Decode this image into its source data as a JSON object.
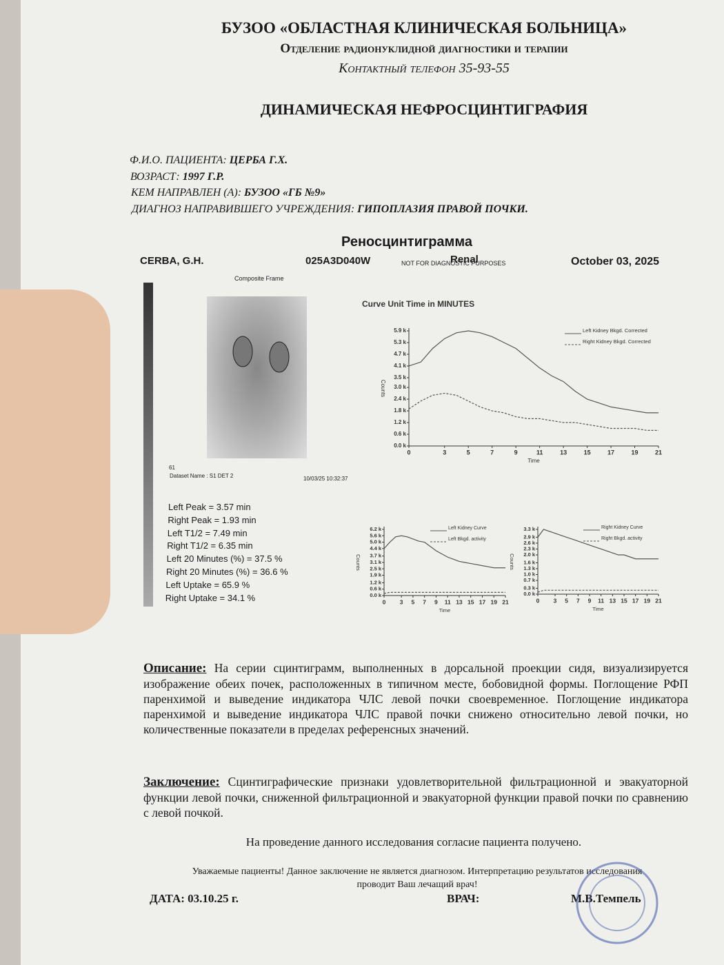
{
  "header": {
    "org": "БУЗОО «ОБЛАСТНАЯ КЛИНИЧЕСКАЯ БОЛЬНИЦА»",
    "dept": "Отделение радионуклидной диагностики и терапии",
    "phone": "Контактный телефон 35-93-55"
  },
  "title": "ДИНАМИЧЕСКАЯ НЕФРОСЦИНТИГРАФИЯ",
  "patient": [
    {
      "label": "Ф.И.О. ПАЦИЕНТА:",
      "value": "ЦЕРБА Г.Х."
    },
    {
      "label": "ВОЗРАСТ:",
      "value": "1997 Г.Р."
    },
    {
      "label": "КЕМ НАПРАВЛЕН (А):",
      "value": "БУЗОО «ГБ №9»"
    },
    {
      "label": "ДИАГНОЗ НАПРАВИВШЕГО УЧРЕЖДЕНИЯ:",
      "value": "ГИПОПЛАЗИЯ ПРАВОЙ ПОЧКИ."
    }
  ],
  "report": {
    "title": "Реносцинтиграмма",
    "patient": "CERBA, G.H.",
    "id": "025A3D040W",
    "note": "NOT FOR DIAGNOSTIC PURPOSES",
    "study": "Renal",
    "date": "October 03, 2025"
  },
  "image": {
    "title": "Composite Frame",
    "frame": "61",
    "dataset": "Dataset Name : S1 DET 2",
    "timestamp": "10/03/25 10:32:37"
  },
  "stats": [
    "Left Peak = 3.57 min",
    "Right Peak = 1.93 min",
    "Left T1/2 = 7.49 min",
    "Right T1/2 = 6.35 min",
    "Left 20 Minutes (%) = 37.5 %",
    "Right 20 Minutes (%) = 36.6 %",
    "Left Uptake = 65.9 %",
    "Right Uptake = 34.1 %"
  ],
  "charts": [
    {
      "type": "line",
      "title": "Curve Unit Time in MINUTES",
      "x_label": "Time",
      "y_label": "Counts",
      "xlim": [
        0,
        21
      ],
      "xticks": [
        0,
        3,
        5,
        7,
        9,
        11,
        13,
        15,
        17,
        19,
        21
      ],
      "ylim": [
        0,
        5.9
      ],
      "yticks": [
        {
          "value": 0,
          "label": "0.0 k"
        },
        {
          "value": 0.6,
          "label": "0.6 k"
        },
        {
          "value": 1.2,
          "label": "1.2 k"
        },
        {
          "value": 1.8,
          "label": "1.8 k"
        },
        {
          "value": 2.4,
          "label": "2.4 k"
        },
        {
          "value": 3.0,
          "label": "3.0 k"
        },
        {
          "value": 3.5,
          "label": "3.5 k"
        },
        {
          "value": 4.1,
          "label": "4.1 k"
        },
        {
          "value": 4.7,
          "label": "4.7 k"
        },
        {
          "value": 5.3,
          "label": "5.3 k"
        },
        {
          "value": 5.9,
          "label": "5.9 k"
        }
      ],
      "x": [
        0,
        1,
        2,
        3,
        4,
        5,
        6,
        7,
        8,
        9,
        10,
        11,
        12,
        13,
        14,
        15,
        16,
        17,
        18,
        19,
        20,
        21
      ],
      "series": [
        {
          "name": "Left Kidney Bkgd. Corrected",
          "color": "#555555",
          "values": [
            4.1,
            4.3,
            5.0,
            5.5,
            5.8,
            5.9,
            5.8,
            5.6,
            5.3,
            5.0,
            4.5,
            4.0,
            3.6,
            3.3,
            2.8,
            2.4,
            2.2,
            2.0,
            1.9,
            1.8,
            1.7,
            1.7
          ]
        },
        {
          "name": "Right Kidney Bkgd. Corrected",
          "color": "#555555",
          "values": [
            1.9,
            2.3,
            2.6,
            2.7,
            2.6,
            2.3,
            2.0,
            1.8,
            1.7,
            1.5,
            1.4,
            1.4,
            1.3,
            1.2,
            1.2,
            1.1,
            1.0,
            0.9,
            0.9,
            0.9,
            0.8,
            0.8
          ]
        }
      ]
    },
    {
      "type": "line",
      "x_label": "Time",
      "y_label": "Counts",
      "xlim": [
        0,
        21
      ],
      "xticks": [
        0,
        3,
        5,
        7,
        9,
        11,
        13,
        15,
        17,
        19,
        21
      ],
      "ylim": [
        0,
        6.2
      ],
      "yticks": [
        {
          "value": 0,
          "label": "0.0 k"
        },
        {
          "value": 0.6,
          "label": "0.6 k"
        },
        {
          "value": 1.2,
          "label": "1.2 k"
        },
        {
          "value": 1.9,
          "label": "1.9 k"
        },
        {
          "value": 2.5,
          "label": "2.5 k"
        },
        {
          "value": 3.1,
          "label": "3.1 k"
        },
        {
          "value": 3.7,
          "label": "3.7 k"
        },
        {
          "value": 4.4,
          "label": "4.4 k"
        },
        {
          "value": 5.0,
          "label": "5.0 k"
        },
        {
          "value": 5.6,
          "label": "5.6 k"
        },
        {
          "value": 6.2,
          "label": "6.2 k"
        }
      ],
      "x": [
        0,
        1,
        2,
        3,
        4,
        5,
        6,
        7,
        8,
        9,
        10,
        11,
        12,
        13,
        14,
        15,
        16,
        17,
        18,
        19,
        20,
        21
      ],
      "series": [
        {
          "name": "Left Kidney Curve",
          "color": "#555555",
          "values": [
            4.4,
            5.0,
            5.5,
            5.6,
            5.5,
            5.3,
            5.1,
            5.0,
            4.6,
            4.2,
            3.9,
            3.6,
            3.4,
            3.2,
            3.1,
            3.0,
            2.9,
            2.8,
            2.7,
            2.6,
            2.6,
            2.6
          ]
        },
        {
          "name": "Left Bkgd. activity",
          "color": "#555555",
          "values": [
            0.2,
            0.3,
            0.3,
            0.3,
            0.3,
            0.3,
            0.3,
            0.3,
            0.3,
            0.3,
            0.3,
            0.3,
            0.3,
            0.3,
            0.3,
            0.3,
            0.3,
            0.3,
            0.3,
            0.3,
            0.3,
            0.3
          ]
        }
      ]
    },
    {
      "type": "line",
      "x_label": "Time",
      "y_label": "Counts",
      "xlim": [
        0,
        21
      ],
      "xticks": [
        0,
        3,
        5,
        7,
        9,
        11,
        13,
        15,
        17,
        19,
        21
      ],
      "ylim": [
        0,
        3.3
      ],
      "yticks": [
        {
          "value": 0,
          "label": "0.0 k"
        },
        {
          "value": 0.3,
          "label": "0.3 k"
        },
        {
          "value": 0.7,
          "label": "0.7 k"
        },
        {
          "value": 1.0,
          "label": "1.0 k"
        },
        {
          "value": 1.3,
          "label": "1.3 k"
        },
        {
          "value": 1.6,
          "label": "1.6 k"
        },
        {
          "value": 2.0,
          "label": "2.0 k"
        },
        {
          "value": 2.3,
          "label": "2.3 k"
        },
        {
          "value": 2.6,
          "label": "2.6 k"
        },
        {
          "value": 2.9,
          "label": "2.9 k"
        },
        {
          "value": 3.3,
          "label": "3.3 k"
        }
      ],
      "x": [
        0,
        1,
        2,
        3,
        4,
        5,
        6,
        7,
        8,
        9,
        10,
        11,
        12,
        13,
        14,
        15,
        16,
        17,
        18,
        19,
        20,
        21
      ],
      "series": [
        {
          "name": "Right Kidney Curve",
          "color": "#555555",
          "values": [
            2.9,
            3.3,
            3.2,
            3.1,
            3.0,
            2.9,
            2.8,
            2.7,
            2.6,
            2.5,
            2.4,
            2.3,
            2.2,
            2.1,
            2.0,
            2.0,
            1.9,
            1.8,
            1.8,
            1.8,
            1.8,
            1.8
          ]
        },
        {
          "name": "Right Bkgd. activity",
          "color": "#555555",
          "values": [
            0.1,
            0.2,
            0.2,
            0.2,
            0.2,
            0.2,
            0.2,
            0.2,
            0.2,
            0.2,
            0.2,
            0.2,
            0.2,
            0.2,
            0.2,
            0.2,
            0.2,
            0.2,
            0.2,
            0.2,
            0.2,
            0.2
          ]
        }
      ]
    }
  ],
  "description": {
    "label": "Описание:",
    "text": "На серии сцинтиграмм, выполненных в дорсальной проекции сидя, визуализируется изображение обеих почек, расположенных в типичном месте, бобовидной формы. Поглощение РФП паренхимой и выведение индикатора ЧЛС левой почки своевременное. Поглощение индикатора паренхимой и выведение индикатора ЧЛС правой почки снижено относительно левой почки, но количественные показатели в пределах референсных значений."
  },
  "conclusion": {
    "label": "Заключение:",
    "text": "Сцинтиграфические признаки удовлетворительной фильтрационной и эвакуаторной функции левой почки, сниженной фильтрационной и эвакуаторной функции правой почки по сравнению с левой почкой."
  },
  "consent": "На проведение данного исследования согласие пациента получено.",
  "disclaimer": "Уважаемые пациенты! Данное заключение не является диагнозом. Интерпретацию результатов исследования проводит Ваш лечащий врач!",
  "footer": {
    "date": "ДАТА: 03.10.25 г.",
    "doctor_label": "ВРАЧ:",
    "doctor": "М.В.Темпель"
  }
}
